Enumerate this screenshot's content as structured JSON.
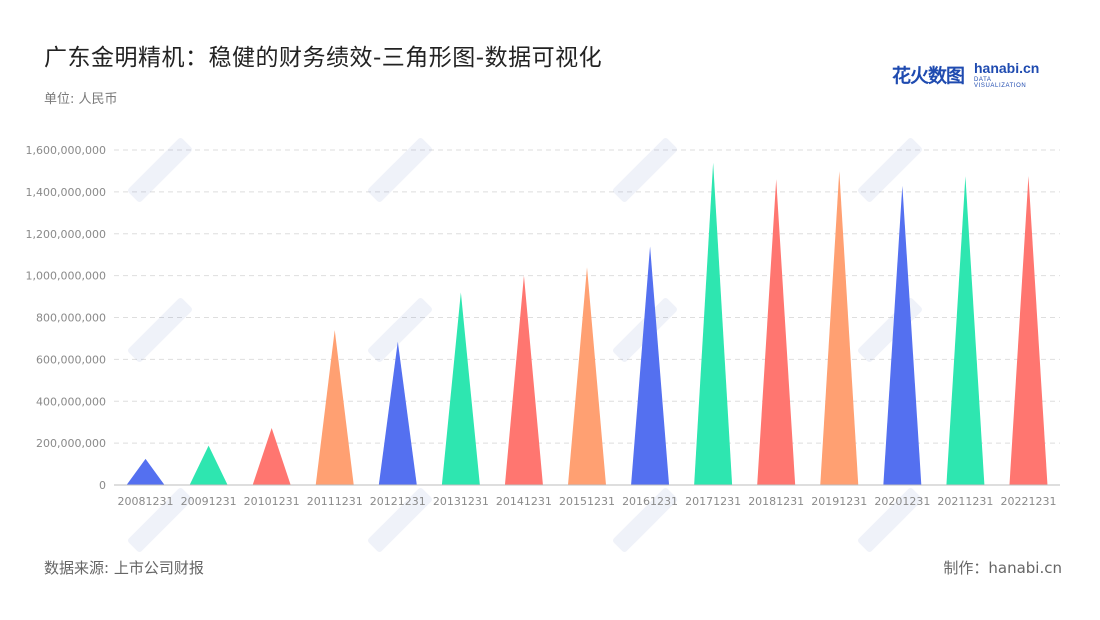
{
  "header": {
    "title": "广东金明精机：稳健的财务绩效-三角形图-数据可视化",
    "unit": "单位: 人民币"
  },
  "logo": {
    "cn": "花火数图",
    "en": "hanabi.cn",
    "sub": "DATA VISUALIZATION"
  },
  "footer": {
    "source": "数据来源: 上市公司财报",
    "maker": "制作：hanabi.cn"
  },
  "chart_data": {
    "type": "bar",
    "title": "广东金明精机：稳健的财务绩效-三角形图-数据可视化",
    "xlabel": "",
    "ylabel": "",
    "ylim": [
      0,
      1600000000
    ],
    "yticks": [
      0,
      200000000,
      400000000,
      600000000,
      800000000,
      1000000000,
      1200000000,
      1400000000,
      1600000000
    ],
    "ytick_labels": [
      "0",
      "200,000,000",
      "400,000,000",
      "600,000,000",
      "800,000,000",
      "1,000,000,000",
      "1,200,000,000",
      "1,400,000,000",
      "1,600,000,000"
    ],
    "grid": true,
    "legend": "none",
    "shape": "triangle",
    "categories": [
      "20081231",
      "20091231",
      "20101231",
      "20111231",
      "20121231",
      "20131231",
      "20141231",
      "20151231",
      "20161231",
      "20171231",
      "20181231",
      "20191231",
      "20201231",
      "20211231",
      "20221231"
    ],
    "values": [
      125000000,
      188000000,
      272000000,
      740000000,
      685000000,
      920000000,
      1000000000,
      1040000000,
      1140000000,
      1540000000,
      1460000000,
      1500000000,
      1430000000,
      1475000000,
      1475000000
    ],
    "colors": [
      "#5470f0",
      "#2ee6b0",
      "#ff7670",
      "#ffa072",
      "#5470f0",
      "#2ee6b0",
      "#ff7670",
      "#ffa072",
      "#5470f0",
      "#2ee6b0",
      "#ff7670",
      "#ffa072",
      "#5470f0",
      "#2ee6b0",
      "#ff7670"
    ]
  }
}
